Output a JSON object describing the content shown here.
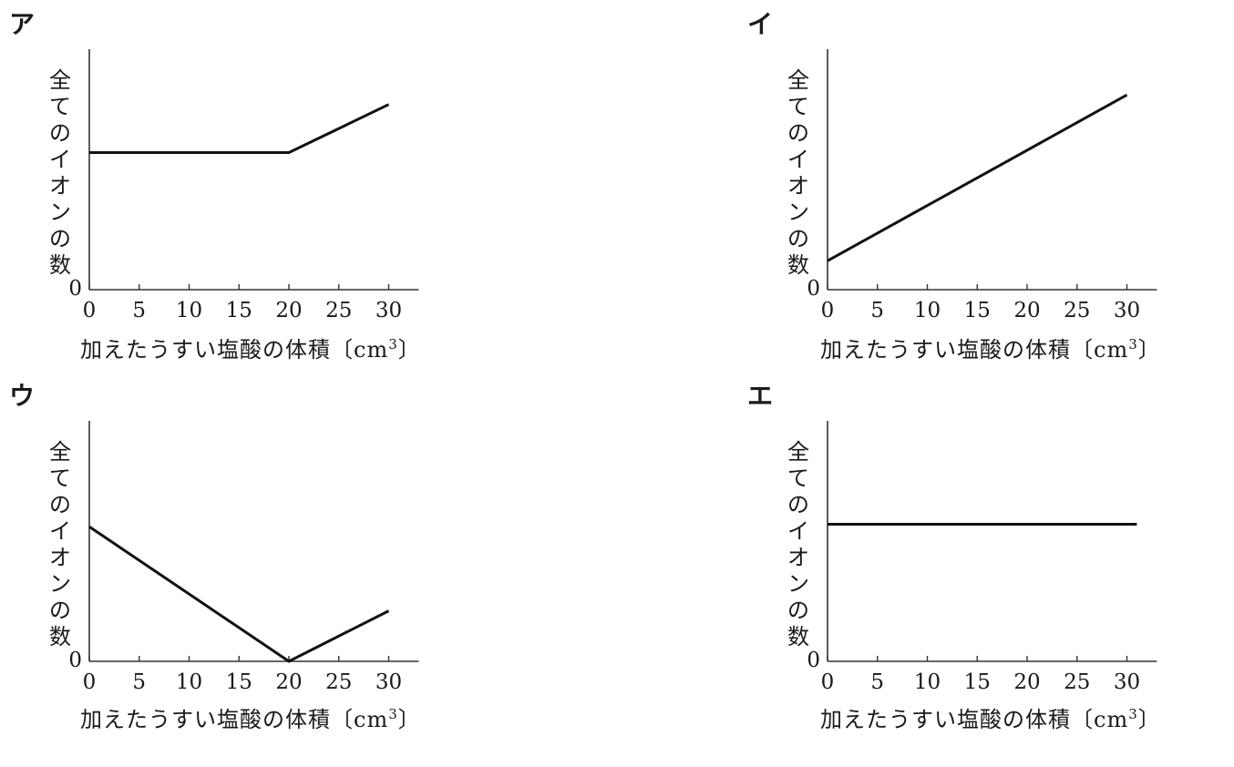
{
  "panels": [
    {
      "label": "ア",
      "ylabel": "全てのイオンの数",
      "xlabel_main": "加えたうすい塩酸の体積〔cm",
      "xlabel_sup": "3",
      "xlabel_close": "〕",
      "y_zero_label": "0"
    },
    {
      "label": "イ",
      "ylabel": "全てのイオンの数",
      "xlabel_main": "加えたうすい塩酸の体積〔cm",
      "xlabel_sup": "3",
      "xlabel_close": "〕",
      "y_zero_label": "0"
    },
    {
      "label": "ウ",
      "ylabel": "全てのイオンの数",
      "xlabel_main": "加えたうすい塩酸の体積〔cm",
      "xlabel_sup": "3",
      "xlabel_close": "〕",
      "y_zero_label": "0"
    },
    {
      "label": "エ",
      "ylabel": "全てのイオンの数",
      "xlabel_main": "加えたうすい塩酸の体積〔cm",
      "xlabel_sup": "3",
      "xlabel_close": "〕",
      "y_zero_label": "0"
    }
  ],
  "chart_data": [
    {
      "type": "line",
      "panel": "ア",
      "x": [
        0,
        20,
        30
      ],
      "y": [
        0.57,
        0.57,
        0.77
      ],
      "xticks": [
        0,
        5,
        10,
        15,
        20,
        25,
        30
      ],
      "xlim": [
        0,
        33
      ],
      "ylim": [
        0,
        1
      ],
      "ytick_labels": [
        "0"
      ],
      "xlabel": "加えたうすい塩酸の体積〔cm3〕",
      "ylabel": "全てのイオンの数",
      "grid": false
    },
    {
      "type": "line",
      "panel": "イ",
      "x": [
        0,
        30
      ],
      "y": [
        0.12,
        0.81
      ],
      "xticks": [
        0,
        5,
        10,
        15,
        20,
        25,
        30
      ],
      "xlim": [
        0,
        33
      ],
      "ylim": [
        0,
        1
      ],
      "ytick_labels": [
        "0"
      ],
      "xlabel": "加えたうすい塩酸の体積〔cm3〕",
      "ylabel": "全てのイオンの数",
      "grid": false
    },
    {
      "type": "line",
      "panel": "ウ",
      "x": [
        0,
        20,
        30
      ],
      "y": [
        0.56,
        0,
        0.21
      ],
      "xticks": [
        0,
        5,
        10,
        15,
        20,
        25,
        30
      ],
      "xlim": [
        0,
        33
      ],
      "ylim": [
        0,
        1
      ],
      "ytick_labels": [
        "0"
      ],
      "xlabel": "加えたうすい塩酸の体積〔cm3〕",
      "ylabel": "全てのイオンの数",
      "grid": false
    },
    {
      "type": "line",
      "panel": "エ",
      "x": [
        0,
        31
      ],
      "y": [
        0.57,
        0.57
      ],
      "xticks": [
        0,
        5,
        10,
        15,
        20,
        25,
        30
      ],
      "xlim": [
        0,
        33
      ],
      "ylim": [
        0,
        1
      ],
      "ytick_labels": [
        "0"
      ],
      "xlabel": "加えたうすい塩酸の体積〔cm3〕",
      "ylabel": "全てのイオンの数",
      "grid": false
    }
  ]
}
